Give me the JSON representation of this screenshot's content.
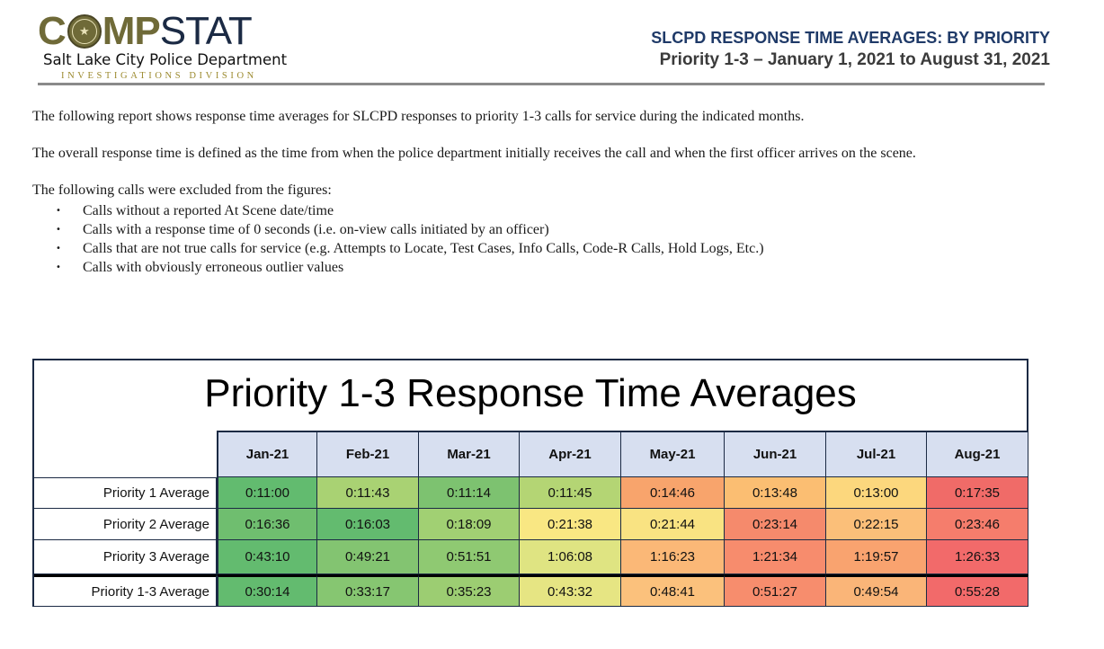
{
  "header": {
    "logo": {
      "wordmark_c": "C",
      "wordmark_mp": "MP",
      "wordmark_stat": "STAT",
      "seal_text": "COMPSTAT SALT LAKE CITY",
      "department": "Salt Lake City Police Department",
      "division": "INVESTIGATIONS DIVISION"
    },
    "title": "SLCPD RESPONSE TIME AVERAGES: BY PRIORITY",
    "subtitle": "Priority 1-3 – January 1, 2021 to August 31, 2021"
  },
  "body": {
    "paragraph1": "The following report shows response time averages for SLCPD responses to priority 1-3 calls for service during the indicated months.",
    "paragraph2": "The overall response time is defined as the time from when the police department initially receives the call and when the first officer arrives on the scene.",
    "exclusions_intro": "The following calls were excluded from the figures:",
    "bullet_char": "•",
    "exclusions": [
      "Calls without a reported At Scene date/time",
      "Calls with a response time of 0 seconds (i.e. on-view calls initiated by an officer)",
      "Calls that are not true calls for service (e.g. Attempts to Locate, Test Cases, Info Calls, Code-R Calls, Hold Logs, Etc.)",
      "Calls with obviously erroneous outlier values"
    ]
  },
  "table": {
    "title": "Priority 1-3 Response Time Averages",
    "columns": [
      "Jan-21",
      "Feb-21",
      "Mar-21",
      "Apr-21",
      "May-21",
      "Jun-21",
      "Jul-21",
      "Aug-21"
    ],
    "rows": [
      {
        "label": "Priority 1 Average",
        "values": [
          "0:11:00",
          "0:11:43",
          "0:11:14",
          "0:11:45",
          "0:14:46",
          "0:13:48",
          "0:13:00",
          "0:17:35"
        ],
        "colors": [
          "#62bb6f",
          "#a9d273",
          "#7dc270",
          "#b4d574",
          "#f8a46c",
          "#fbbe72",
          "#fcd77d",
          "#f06b68"
        ]
      },
      {
        "label": "Priority 2 Average",
        "values": [
          "0:16:36",
          "0:16:03",
          "0:18:09",
          "0:21:38",
          "0:21:44",
          "0:23:14",
          "0:22:15",
          "0:23:46"
        ],
        "colors": [
          "#6fbe6f",
          "#63bb6f",
          "#a1d073",
          "#f9e783",
          "#f9e382",
          "#f58a6c",
          "#fbbf79",
          "#f57d6c"
        ]
      },
      {
        "label": "Priority 3 Average",
        "values": [
          "0:43:10",
          "0:49:21",
          "0:51:51",
          "1:06:08",
          "1:16:23",
          "1:21:34",
          "1:19:57",
          "1:26:33"
        ],
        "colors": [
          "#63bb6f",
          "#83c471",
          "#8fc972",
          "#dfe482",
          "#fbb877",
          "#f78c6d",
          "#f9a36f",
          "#f26a6a"
        ]
      },
      {
        "label": "Priority 1-3 Average",
        "values": [
          "0:30:14",
          "0:33:17",
          "0:35:23",
          "0:43:32",
          "0:48:41",
          "0:51:27",
          "0:49:54",
          "0:55:28"
        ],
        "colors": [
          "#63bb6f",
          "#86c671",
          "#9ccd72",
          "#e6e583",
          "#fbc17c",
          "#f78d6d",
          "#fab578",
          "#f26a6a"
        ]
      }
    ]
  }
}
